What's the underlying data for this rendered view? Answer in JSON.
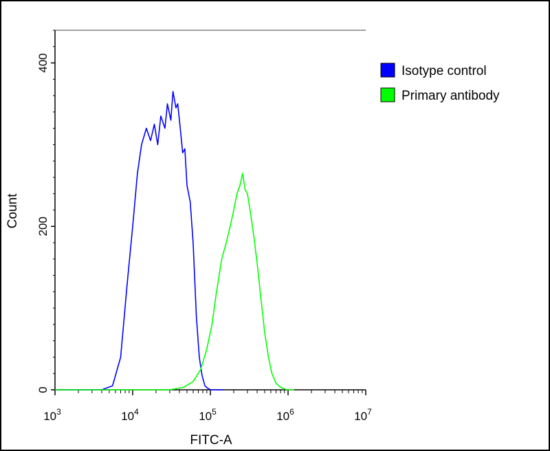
{
  "chart_data": {
    "type": "area",
    "xlabel": "FITC-A",
    "ylabel": "Count",
    "x_scale": "log",
    "xlim": [
      1000,
      10000000
    ],
    "ylim": [
      0,
      440
    ],
    "x_ticks": [
      {
        "value": 1000,
        "base": "10",
        "exp": "3"
      },
      {
        "value": 10000,
        "base": "10",
        "exp": "4"
      },
      {
        "value": 100000,
        "base": "10",
        "exp": "5"
      },
      {
        "value": 1000000,
        "base": "10",
        "exp": "6"
      },
      {
        "value": 10000000,
        "base": "10",
        "exp": "7"
      }
    ],
    "y_ticks": [
      {
        "value": 0,
        "label": "0"
      },
      {
        "value": 200,
        "label": "200"
      },
      {
        "value": 400,
        "label": "400"
      }
    ],
    "legend_position": "top-right",
    "series": [
      {
        "name": "Isotype control",
        "color": "#0000ff",
        "x": [
          1000,
          4000,
          5500,
          7000,
          8500,
          10000,
          11500,
          13000,
          15000,
          17000,
          19000,
          21000,
          23000,
          26000,
          28000,
          31000,
          33000,
          36000,
          38000,
          41000,
          44000,
          47000,
          50000,
          55000,
          60000,
          66000,
          72000,
          78000,
          85000,
          92000,
          100000,
          110000,
          120000,
          150000
        ],
        "y": [
          0,
          0,
          5,
          40,
          130,
          200,
          265,
          300,
          320,
          305,
          325,
          300,
          335,
          320,
          350,
          330,
          365,
          345,
          350,
          320,
          290,
          295,
          250,
          230,
          180,
          90,
          40,
          18,
          5,
          2,
          0,
          0,
          0,
          0
        ]
      },
      {
        "name": "Primary antibody",
        "color": "#00ff00",
        "x": [
          1000,
          30000,
          45000,
          60000,
          75000,
          90000,
          105000,
          120000,
          140000,
          160000,
          180000,
          200000,
          220000,
          240000,
          260000,
          280000,
          300000,
          330000,
          360000,
          400000,
          450000,
          500000,
          560000,
          620000,
          700000,
          800000,
          900000,
          1000000,
          1200000
        ],
        "y": [
          0,
          0,
          3,
          10,
          25,
          50,
          80,
          120,
          160,
          180,
          200,
          220,
          240,
          250,
          265,
          245,
          240,
          215,
          190,
          155,
          110,
          70,
          40,
          20,
          8,
          3,
          1,
          0,
          0
        ]
      }
    ]
  }
}
